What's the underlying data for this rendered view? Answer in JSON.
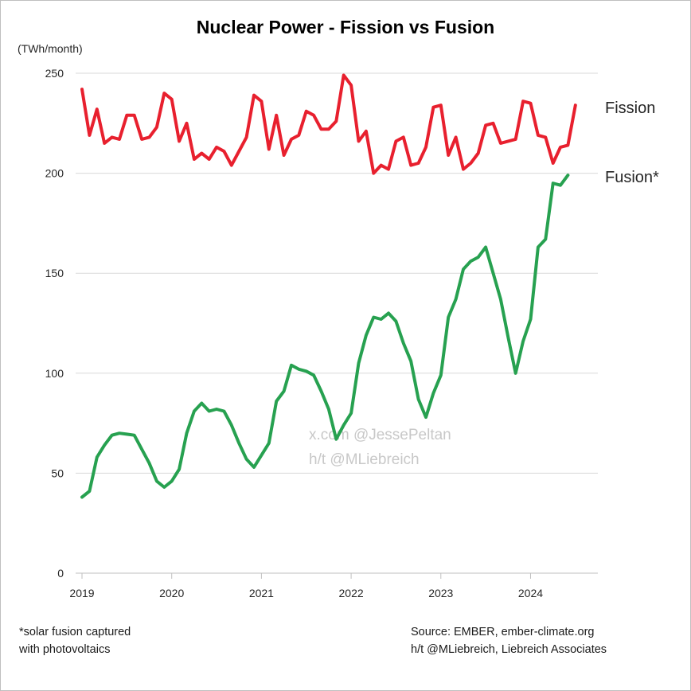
{
  "chart_data": {
    "type": "line",
    "title": "Nuclear Power - Fission vs Fusion",
    "ylabel": "(TWh/month)",
    "xlabel": "",
    "ylim": [
      0,
      250
    ],
    "y_ticks": [
      "0",
      "50",
      "100",
      "150",
      "200",
      "250"
    ],
    "x_ticks": [
      "2019",
      "2020",
      "2021",
      "2022",
      "2023",
      "2024"
    ],
    "grid": true,
    "x_start": 2019.0,
    "x_step": 0.0833333,
    "series": [
      {
        "name": "Fission",
        "label": "Fission",
        "color": "#e8202e",
        "values": [
          242,
          219,
          232,
          215,
          218,
          217,
          229,
          229,
          217,
          218,
          223,
          240,
          237,
          216,
          225,
          207,
          210,
          207,
          213,
          211,
          204,
          211,
          218,
          239,
          236,
          212,
          229,
          209,
          217,
          219,
          231,
          229,
          222,
          222,
          226,
          249,
          244,
          216,
          221,
          200,
          204,
          202,
          216,
          218,
          204,
          205,
          213,
          233,
          234,
          209,
          218,
          202,
          205,
          210,
          224,
          225,
          215,
          216,
          217,
          236,
          235,
          219,
          218,
          205,
          213,
          214,
          234
        ]
      },
      {
        "name": "Fusion*",
        "label": "Fusion*",
        "color": "#27a150",
        "values": [
          38,
          41,
          58,
          64,
          69,
          70,
          69.5,
          69,
          62,
          55,
          46,
          43,
          46,
          52,
          70,
          81,
          85,
          81,
          82,
          81,
          74,
          65,
          57,
          53,
          59,
          65,
          86,
          91,
          104,
          102,
          101,
          99,
          91,
          82,
          67,
          74,
          80,
          105,
          119,
          128,
          127,
          130,
          126,
          115,
          106,
          87,
          78,
          90,
          99,
          128,
          137,
          152,
          156,
          158,
          163,
          150,
          137,
          118,
          100,
          116,
          127,
          163,
          167,
          195,
          194,
          199
        ]
      }
    ]
  },
  "watermark": {
    "line1": "x.com @JessePeltan",
    "line2": "h/t @MLiebreich"
  },
  "footnote": {
    "line1": "*solar fusion captured",
    "line2": "with photovoltaics"
  },
  "source": {
    "line1": "Source: EMBER, ember-climate.org",
    "line2": "h/t @MLiebreich, Liebreich Associates"
  },
  "colors": {
    "fission": "#e8202e",
    "fusion": "#27a150",
    "grid": "#d9d9d9",
    "axis": "#bfbfbf"
  }
}
